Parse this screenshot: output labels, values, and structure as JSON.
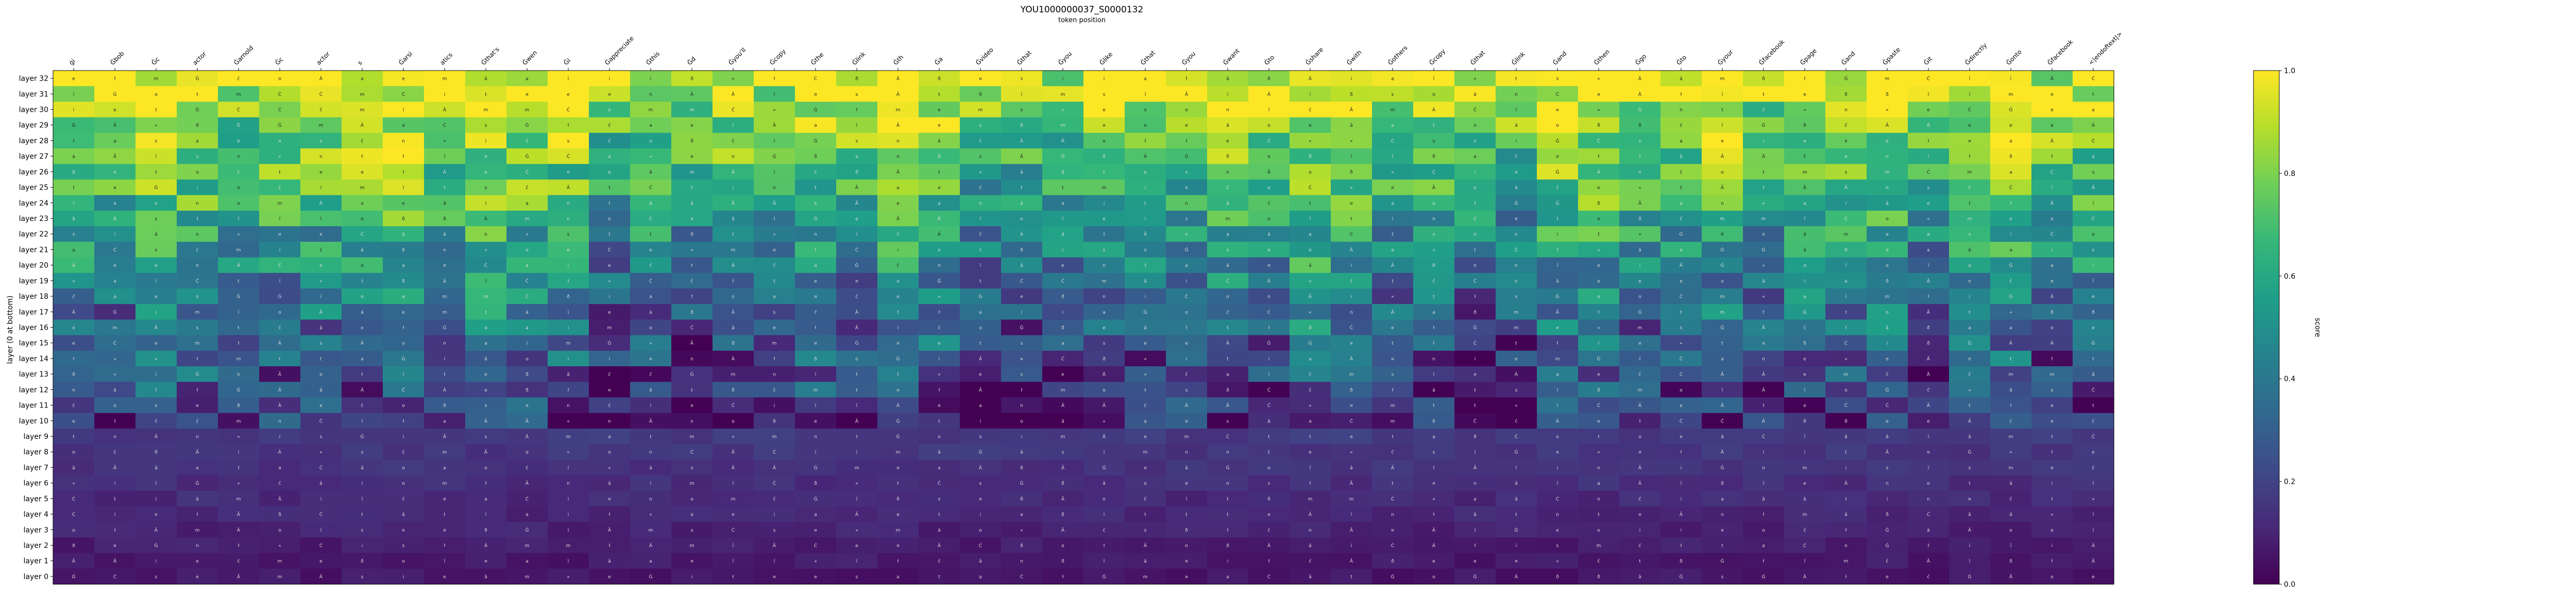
{
  "chart_data": {
    "type": "heatmap",
    "title": "YOU1000000037_S0000132",
    "xlabel": "token position",
    "ylabel": "layer (0 at bottom)",
    "colorbar_label": "score",
    "colormap": "viridis",
    "vmin": 0.0,
    "vmax": 1.0,
    "colorbar_ticks": [
      "0.0",
      "0.2",
      "0.4",
      "0.6",
      "0.8",
      "1.0"
    ],
    "x_tokens": [
      "ġi",
      "Ġbob",
      "Ġc",
      "actor",
      "Ġarnold",
      "Ġc",
      "actor",
      "s",
      "Ġarsi",
      "atics",
      "Ġthat's",
      "Ġwen",
      "Ġi",
      "Ġappreciate",
      "Ġthis",
      "Ġd",
      "Ġyou'll",
      "Ġcopy",
      "Ġthe",
      "Ġlink",
      "Ġth",
      "Ġa",
      "Ġvideo",
      "Ġthat",
      "Ġyou",
      "Ġlike",
      "Ġthat",
      "Ġyou",
      "Ġwant",
      "Ġto",
      "Ġshare",
      "Ġwith",
      "Ġothers",
      "Ġcopy",
      "Ġthat",
      "Ġlink",
      "Ġand",
      "Ġthen",
      "Ġgo",
      "Ġto",
      "Ġyour",
      "Ġfacebook",
      "Ġpage",
      "Ġand",
      "Ġpaste",
      "Ġit",
      "Ġdirectly",
      "Ġonto",
      "Ġfacebook",
      "<|endoftext|>"
    ],
    "y_layers": [
      "layer 32",
      "layer 31",
      "layer 30",
      "layer 29",
      "layer 28",
      "layer 27",
      "layer 26",
      "layer 25",
      "layer 24",
      "layer 23",
      "layer 22",
      "layer 21",
      "layer 20",
      "layer 19",
      "layer 18",
      "layer 17",
      "layer 16",
      "layer 15",
      "layer 14",
      "layer 13",
      "layer 12",
      "layer 11",
      "layer 10",
      "layer 9",
      "layer 8",
      "layer 7",
      "layer 6",
      "layer 5",
      "layer 4",
      "layer 3",
      "layer 2",
      "layer 1",
      "layer 0"
    ],
    "cell_glyphs": [
      "Ġ",
      "i",
      "s",
      "t",
      "e",
      "a",
      "o",
      "n",
      "ĉ",
      "Ċ",
      "ł",
      "Â",
      "â",
      "ð",
      "ï",
      "Ã",
      "¤",
      "«",
      "m"
    ],
    "grid": false
  }
}
